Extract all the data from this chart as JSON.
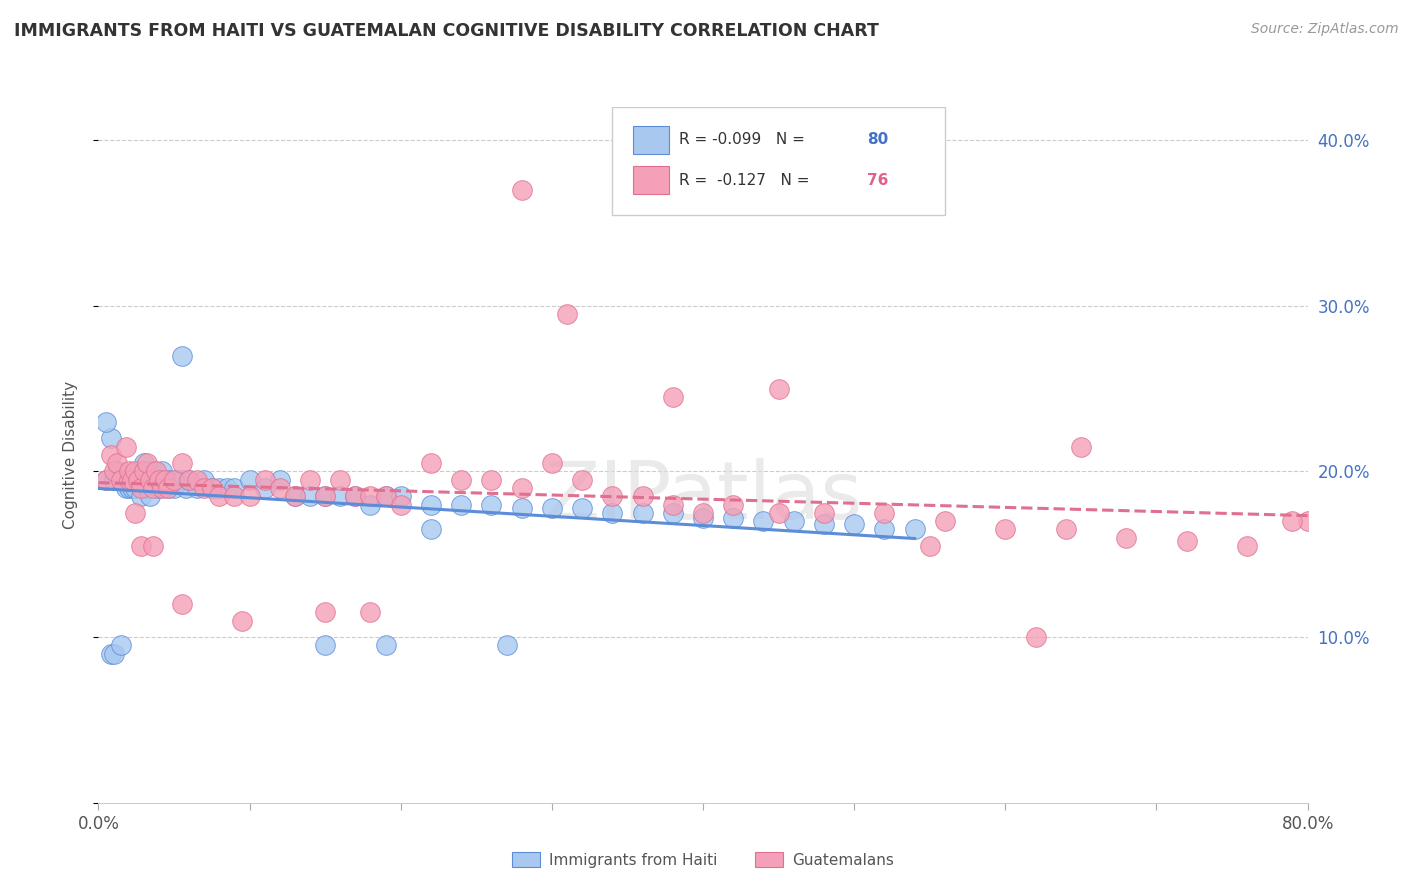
{
  "title": "IMMIGRANTS FROM HAITI VS GUATEMALAN COGNITIVE DISABILITY CORRELATION CHART",
  "source": "Source: ZipAtlas.com",
  "ylabel": "Cognitive Disability",
  "xlim": [
    0,
    0.8
  ],
  "ylim": [
    0,
    0.42
  ],
  "xticks": [
    0.0,
    0.1,
    0.2,
    0.3,
    0.4,
    0.5,
    0.6,
    0.7,
    0.8
  ],
  "yticks": [
    0.0,
    0.1,
    0.2,
    0.3,
    0.4
  ],
  "series1_color": "#A8C8F0",
  "series2_color": "#F4A0B8",
  "line1_color": "#5B8DD9",
  "line2_color": "#E07090",
  "watermark": "ZIPatlas",
  "background_color": "#FFFFFF",
  "series1_label": "Immigrants from Haiti",
  "series2_label": "Guatemalans",
  "legend_r1": "R = -0.099",
  "legend_n1": "80",
  "legend_r2": "R =  -0.127",
  "legend_n2": "76",
  "series1_x": [
    0.005,
    0.008,
    0.01,
    0.012,
    0.015,
    0.015,
    0.018,
    0.018,
    0.02,
    0.02,
    0.022,
    0.022,
    0.024,
    0.024,
    0.026,
    0.026,
    0.028,
    0.028,
    0.03,
    0.03,
    0.032,
    0.032,
    0.034,
    0.034,
    0.036,
    0.038,
    0.04,
    0.04,
    0.042,
    0.044,
    0.046,
    0.048,
    0.05,
    0.052,
    0.055,
    0.058,
    0.06,
    0.065,
    0.07,
    0.075,
    0.08,
    0.085,
    0.09,
    0.1,
    0.11,
    0.12,
    0.13,
    0.14,
    0.15,
    0.16,
    0.17,
    0.18,
    0.19,
    0.2,
    0.22,
    0.24,
    0.26,
    0.28,
    0.3,
    0.32,
    0.34,
    0.36,
    0.38,
    0.4,
    0.42,
    0.44,
    0.46,
    0.48,
    0.5,
    0.52,
    0.54,
    0.005,
    0.008,
    0.01,
    0.015,
    0.055,
    0.15,
    0.27,
    0.22,
    0.19
  ],
  "series1_y": [
    0.195,
    0.22,
    0.195,
    0.2,
    0.195,
    0.195,
    0.195,
    0.19,
    0.195,
    0.19,
    0.195,
    0.19,
    0.195,
    0.19,
    0.2,
    0.195,
    0.195,
    0.185,
    0.205,
    0.195,
    0.2,
    0.19,
    0.195,
    0.185,
    0.2,
    0.195,
    0.195,
    0.19,
    0.2,
    0.195,
    0.19,
    0.195,
    0.19,
    0.195,
    0.195,
    0.19,
    0.195,
    0.19,
    0.195,
    0.19,
    0.19,
    0.19,
    0.19,
    0.195,
    0.19,
    0.195,
    0.185,
    0.185,
    0.185,
    0.185,
    0.185,
    0.18,
    0.185,
    0.185,
    0.18,
    0.18,
    0.18,
    0.178,
    0.178,
    0.178,
    0.175,
    0.175,
    0.175,
    0.172,
    0.172,
    0.17,
    0.17,
    0.168,
    0.168,
    0.165,
    0.165,
    0.23,
    0.09,
    0.09,
    0.095,
    0.27,
    0.095,
    0.095,
    0.165,
    0.095
  ],
  "series2_x": [
    0.005,
    0.008,
    0.01,
    0.012,
    0.015,
    0.018,
    0.02,
    0.02,
    0.022,
    0.024,
    0.026,
    0.028,
    0.03,
    0.032,
    0.034,
    0.036,
    0.038,
    0.04,
    0.042,
    0.044,
    0.046,
    0.05,
    0.055,
    0.06,
    0.065,
    0.07,
    0.075,
    0.08,
    0.09,
    0.1,
    0.11,
    0.12,
    0.13,
    0.14,
    0.15,
    0.16,
    0.17,
    0.18,
    0.19,
    0.2,
    0.22,
    0.24,
    0.26,
    0.28,
    0.3,
    0.32,
    0.34,
    0.36,
    0.38,
    0.4,
    0.42,
    0.45,
    0.48,
    0.52,
    0.56,
    0.6,
    0.64,
    0.68,
    0.72,
    0.76,
    0.8,
    0.024,
    0.028,
    0.036,
    0.055,
    0.095,
    0.15,
    0.18,
    0.55,
    0.62,
    0.79,
    0.28,
    0.31,
    0.38,
    0.45,
    0.65
  ],
  "series2_y": [
    0.195,
    0.21,
    0.2,
    0.205,
    0.195,
    0.215,
    0.195,
    0.2,
    0.195,
    0.2,
    0.195,
    0.19,
    0.2,
    0.205,
    0.195,
    0.19,
    0.2,
    0.195,
    0.19,
    0.195,
    0.19,
    0.195,
    0.205,
    0.195,
    0.195,
    0.19,
    0.19,
    0.185,
    0.185,
    0.185,
    0.195,
    0.19,
    0.185,
    0.195,
    0.185,
    0.195,
    0.185,
    0.185,
    0.185,
    0.18,
    0.205,
    0.195,
    0.195,
    0.19,
    0.205,
    0.195,
    0.185,
    0.185,
    0.18,
    0.175,
    0.18,
    0.175,
    0.175,
    0.175,
    0.17,
    0.165,
    0.165,
    0.16,
    0.158,
    0.155,
    0.17,
    0.175,
    0.155,
    0.155,
    0.12,
    0.11,
    0.115,
    0.115,
    0.155,
    0.1,
    0.17,
    0.37,
    0.295,
    0.245,
    0.25,
    0.215
  ]
}
